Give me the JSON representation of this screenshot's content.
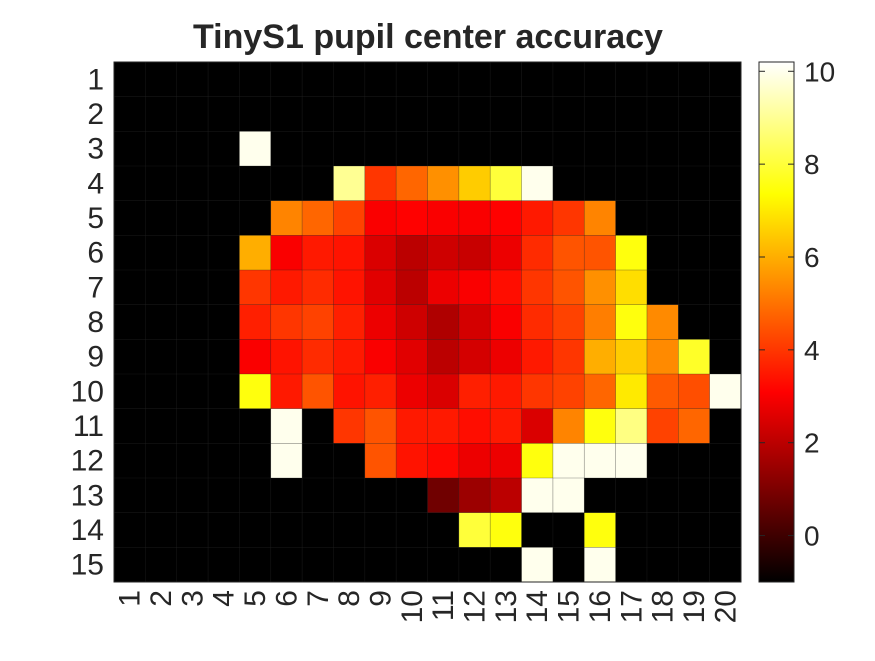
{
  "chart_data": {
    "type": "heatmap",
    "title": "TinyS1 pupil center accuracy",
    "xlabel": "",
    "ylabel": "",
    "x_categories": [
      "1",
      "2",
      "3",
      "4",
      "5",
      "6",
      "7",
      "8",
      "9",
      "10",
      "11",
      "12",
      "13",
      "14",
      "15",
      "16",
      "17",
      "18",
      "19",
      "20"
    ],
    "y_categories": [
      "1",
      "2",
      "3",
      "4",
      "5",
      "6",
      "7",
      "8",
      "9",
      "10",
      "11",
      "12",
      "13",
      "14",
      "15"
    ],
    "colormap": "hot",
    "clim": [
      -1,
      10.2
    ],
    "colorbar_ticks": [
      0,
      2,
      4,
      6,
      8,
      10
    ],
    "grid": true,
    "values": [
      [
        -1,
        -1,
        -1,
        -1,
        -1,
        -1,
        -1,
        -1,
        -1,
        -1,
        -1,
        -1,
        -1,
        -1,
        -1,
        -1,
        -1,
        -1,
        -1,
        -1
      ],
      [
        -1,
        -1,
        -1,
        -1,
        -1,
        -1,
        -1,
        -1,
        -1,
        -1,
        -1,
        -1,
        -1,
        -1,
        -1,
        -1,
        -1,
        -1,
        -1,
        -1
      ],
      [
        -1,
        -1,
        -1,
        -1,
        10,
        -1,
        -1,
        -1,
        -1,
        -1,
        -1,
        -1,
        -1,
        -1,
        -1,
        -1,
        -1,
        -1,
        -1,
        -1
      ],
      [
        -1,
        -1,
        -1,
        -1,
        -1,
        -1,
        -1,
        9,
        4,
        4.8,
        5.5,
        6.5,
        8,
        10,
        -1,
        -1,
        -1,
        -1,
        -1,
        -1
      ],
      [
        -1,
        -1,
        -1,
        -1,
        -1,
        5.3,
        4.8,
        4.2,
        3,
        3.1,
        3,
        3,
        3.1,
        3.5,
        4,
        5.3,
        -1,
        -1,
        -1,
        -1
      ],
      [
        -1,
        -1,
        -1,
        -1,
        6,
        3,
        3.5,
        3.4,
        2.5,
        2,
        2.3,
        2.2,
        2.8,
        3.8,
        4.5,
        4.5,
        7.5,
        -1,
        -1,
        -1
      ],
      [
        -1,
        -1,
        -1,
        -1,
        4,
        3.5,
        3.8,
        3.4,
        2.6,
        2,
        2.8,
        3,
        3.3,
        4,
        4.5,
        5.5,
        6.8,
        -1,
        -1,
        -1
      ],
      [
        -1,
        -1,
        -1,
        -1,
        3.6,
        4,
        4.2,
        3.6,
        2.8,
        2.3,
        1.8,
        2.4,
        3,
        3.8,
        4.2,
        5.2,
        7.5,
        5.4,
        -1,
        -1
      ],
      [
        -1,
        -1,
        -1,
        -1,
        3,
        3.4,
        3.8,
        3.5,
        3,
        2.6,
        2,
        2.4,
        2.8,
        3.5,
        4,
        6,
        6.5,
        5.4,
        7.8,
        -1
      ],
      [
        -1,
        -1,
        -1,
        -1,
        7.5,
        3.5,
        4.5,
        3.4,
        3.6,
        2.8,
        2.5,
        3.6,
        3.5,
        4,
        4.2,
        4.8,
        7,
        4.6,
        4.4,
        10
      ],
      [
        -1,
        -1,
        -1,
        -1,
        -1,
        10,
        -1,
        4,
        4.5,
        3.5,
        3.5,
        3.3,
        3.5,
        2.5,
        5.3,
        7.5,
        8.8,
        4.2,
        4.8,
        -1
      ],
      [
        -1,
        -1,
        -1,
        -1,
        -1,
        10,
        -1,
        -1,
        4.5,
        3.4,
        3.2,
        2.8,
        2.8,
        7.5,
        10,
        10,
        10,
        -1,
        -1,
        -1
      ],
      [
        -1,
        -1,
        -1,
        -1,
        -1,
        -1,
        -1,
        -1,
        -1,
        -1,
        0.8,
        1.5,
        2,
        10,
        10,
        -1,
        -1,
        -1,
        -1,
        -1
      ],
      [
        -1,
        -1,
        -1,
        -1,
        -1,
        -1,
        -1,
        -1,
        -1,
        -1,
        -1,
        8,
        7.5,
        -1,
        -1,
        7.5,
        -1,
        -1,
        -1,
        -1
      ],
      [
        -1,
        -1,
        -1,
        -1,
        -1,
        -1,
        -1,
        -1,
        -1,
        -1,
        -1,
        -1,
        -1,
        10,
        -1,
        10,
        -1,
        -1,
        -1,
        -1
      ]
    ]
  }
}
